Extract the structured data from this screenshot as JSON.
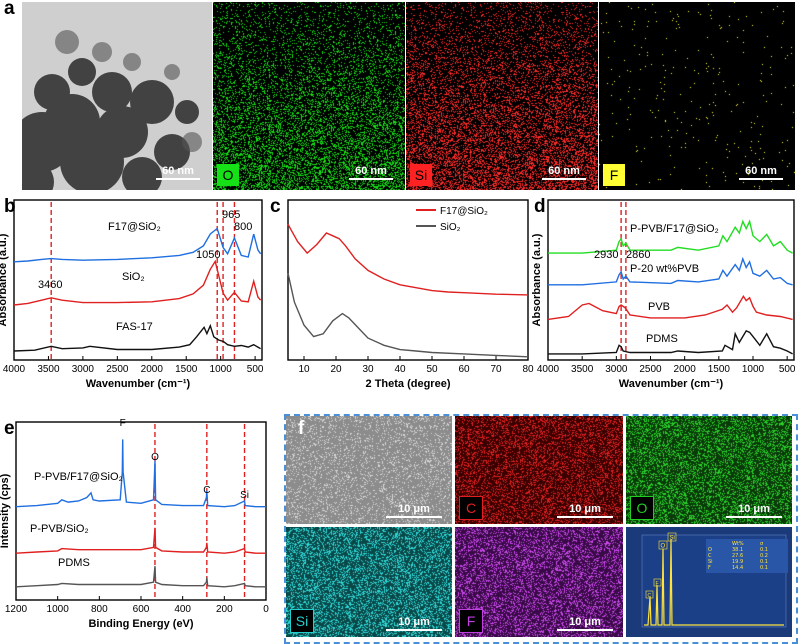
{
  "panel_a": {
    "label": "a",
    "tiles": [
      {
        "element": "",
        "scale": "60 nm"
      },
      {
        "element": "O",
        "scale": "60 nm",
        "color": "#16e016"
      },
      {
        "element": "Si",
        "scale": "60 nm",
        "color": "#ff2222"
      },
      {
        "element": "F",
        "scale": "60 nm",
        "color": "#ffff33"
      }
    ]
  },
  "panel_f": {
    "label": "f",
    "tiles": [
      {
        "element": "",
        "scale": "10 μm"
      },
      {
        "element": "C",
        "scale": "10 μm",
        "color": "#e02020"
      },
      {
        "element": "O",
        "scale": "10 μm",
        "color": "#22cc22"
      },
      {
        "element": "Si",
        "scale": "10 μm",
        "color": "#22d0d0"
      },
      {
        "element": "F",
        "scale": "10 μm",
        "color": "#c040e0"
      }
    ],
    "eds": {
      "header": [
        "",
        "Wt%",
        "σ"
      ],
      "rows": [
        [
          "O",
          "38.1",
          "0.1"
        ],
        [
          "C",
          "27.6",
          "0.2"
        ],
        [
          "Si",
          "19.9",
          "0.1"
        ],
        [
          "F",
          "14.4",
          "0.1"
        ]
      ],
      "peak_labels": [
        "O",
        "Si",
        "C",
        "F"
      ]
    }
  },
  "chart_data": [
    {
      "id": "b",
      "label": "b",
      "type": "line",
      "xlabel": "Wavenumber (cm⁻¹)",
      "ylabel": "Absorbance (a.u.)",
      "xlim": [
        4000,
        400
      ],
      "xticks": [
        "4000",
        "3500",
        "3000",
        "2500",
        "2000",
        "1500",
        "1000",
        "500"
      ],
      "series": [
        {
          "name": "F17@SiO₂",
          "color": "#1f6fe0",
          "offset": 0.66,
          "x": [
            4000,
            3800,
            3600,
            3460,
            3300,
            3000,
            2500,
            2000,
            1600,
            1400,
            1250,
            1150,
            1050,
            965,
            900,
            800,
            700,
            600,
            520,
            460,
            420
          ],
          "y": [
            0.0,
            0.01,
            0.03,
            0.04,
            0.03,
            0.02,
            0.03,
            0.05,
            0.08,
            0.12,
            0.2,
            0.35,
            0.42,
            0.18,
            0.1,
            0.3,
            0.08,
            0.06,
            0.35,
            0.15,
            0.1
          ]
        },
        {
          "name": "SiO₂",
          "color": "#e02020",
          "offset": 0.36,
          "x": [
            4000,
            3800,
            3600,
            3460,
            3300,
            3000,
            2500,
            2000,
            1600,
            1400,
            1250,
            1150,
            1080,
            965,
            900,
            800,
            700,
            600,
            520,
            460,
            420
          ],
          "y": [
            0.0,
            0.02,
            0.06,
            0.09,
            0.06,
            0.03,
            0.03,
            0.04,
            0.08,
            0.14,
            0.25,
            0.45,
            0.55,
            0.15,
            0.06,
            0.16,
            0.05,
            0.04,
            0.3,
            0.1,
            0.06
          ]
        },
        {
          "name": "FAS-17",
          "color": "#111111",
          "offset": 0.04,
          "x": [
            4000,
            3700,
            3460,
            3300,
            3000,
            2900,
            2500,
            2000,
            1600,
            1450,
            1350,
            1240,
            1200,
            1150,
            1100,
            1030,
            960,
            900,
            800,
            700,
            600,
            520,
            460,
            420
          ],
          "y": [
            0.0,
            0.01,
            0.06,
            0.03,
            0.04,
            0.06,
            0.02,
            0.02,
            0.05,
            0.08,
            0.18,
            0.3,
            0.22,
            0.32,
            0.18,
            0.14,
            0.12,
            0.08,
            0.06,
            0.07,
            0.05,
            0.08,
            0.05,
            0.03
          ]
        }
      ],
      "peak_lines": [
        3460,
        1050,
        965,
        800
      ],
      "peak_labels": [
        {
          "x": 3460,
          "text": "3460"
        },
        {
          "x": 1050,
          "text": "1050"
        },
        {
          "x": 965,
          "text": "965"
        },
        {
          "x": 800,
          "text": "800"
        }
      ],
      "series_labels": [
        "F17@SiO₂",
        "SiO₂",
        "FAS-17"
      ]
    },
    {
      "id": "c",
      "label": "c",
      "type": "line",
      "xlabel": "2 Theta (degree)",
      "ylabel": "",
      "xlim": [
        5,
        80
      ],
      "xticks": [
        "10",
        "20",
        "30",
        "40",
        "50",
        "60",
        "70",
        "80"
      ],
      "series": [
        {
          "name": "F17@SiO₂",
          "color": "#e02020",
          "offset": 0.42,
          "x": [
            5,
            8,
            11,
            14,
            17,
            19,
            21,
            23,
            26,
            30,
            35,
            40,
            45,
            50,
            55,
            60,
            70,
            80
          ],
          "y": [
            0.5,
            0.38,
            0.3,
            0.36,
            0.44,
            0.42,
            0.4,
            0.35,
            0.26,
            0.18,
            0.12,
            0.08,
            0.06,
            0.04,
            0.03,
            0.025,
            0.015,
            0.01
          ]
        },
        {
          "name": "SiO₂",
          "color": "#555555",
          "offset": 0.0,
          "x": [
            5,
            7,
            10,
            13,
            16,
            19,
            22,
            24,
            27,
            30,
            35,
            40,
            45,
            50,
            60,
            70,
            80
          ],
          "y": [
            0.58,
            0.38,
            0.22,
            0.14,
            0.16,
            0.25,
            0.3,
            0.27,
            0.2,
            0.13,
            0.08,
            0.05,
            0.04,
            0.03,
            0.02,
            0.01,
            0.0
          ]
        }
      ]
    },
    {
      "id": "d",
      "label": "d",
      "type": "line",
      "xlabel": "Wavenumber (cm⁻¹)",
      "ylabel": "Absorbance (a.u.)",
      "xlim": [
        4000,
        400
      ],
      "xticks": [
        "4000",
        "3500",
        "3000",
        "2500",
        "2000",
        "1500",
        "1000",
        "500"
      ],
      "series": [
        {
          "name": "P-PVB/F17@SiO₂",
          "color": "#22dd22",
          "offset": 0.72,
          "x": [
            4000,
            3500,
            3000,
            2960,
            2930,
            2900,
            2860,
            2800,
            2200,
            2100,
            1800,
            1500,
            1440,
            1380,
            1260,
            1200,
            1150,
            1100,
            1050,
            1000,
            900,
            800,
            700,
            600,
            500,
            420
          ],
          "y": [
            0.0,
            0.0,
            0.02,
            0.08,
            0.1,
            0.05,
            0.07,
            0.02,
            0.02,
            0.04,
            0.02,
            0.05,
            0.12,
            0.08,
            0.18,
            0.14,
            0.22,
            0.17,
            0.22,
            0.12,
            0.08,
            0.13,
            0.05,
            0.08,
            0.02,
            0.0
          ]
        },
        {
          "name": "P-20 wt%PVB",
          "color": "#1f6fe0",
          "offset": 0.5,
          "x": [
            4000,
            3500,
            3000,
            2960,
            2930,
            2900,
            2860,
            2800,
            2200,
            2100,
            1800,
            1500,
            1440,
            1380,
            1260,
            1200,
            1150,
            1100,
            1050,
            1000,
            900,
            800,
            700,
            600,
            500,
            420
          ],
          "y": [
            0.0,
            0.0,
            0.02,
            0.07,
            0.09,
            0.04,
            0.06,
            0.02,
            0.01,
            0.03,
            0.02,
            0.04,
            0.1,
            0.06,
            0.14,
            0.1,
            0.18,
            0.12,
            0.16,
            0.08,
            0.06,
            0.1,
            0.04,
            0.05,
            0.01,
            0.0
          ]
        },
        {
          "name": "PVB",
          "color": "#e02020",
          "offset": 0.26,
          "x": [
            4000,
            3700,
            3500,
            3400,
            3200,
            3000,
            2960,
            2930,
            2870,
            2800,
            2500,
            2000,
            1700,
            1450,
            1380,
            1300,
            1240,
            1140,
            1100,
            1050,
            1000,
            950,
            800,
            600,
            420
          ],
          "y": [
            0.0,
            0.02,
            0.1,
            0.11,
            0.06,
            0.04,
            0.09,
            0.1,
            0.08,
            0.03,
            0.01,
            0.01,
            0.03,
            0.07,
            0.1,
            0.05,
            0.08,
            0.16,
            0.13,
            0.15,
            0.09,
            0.05,
            0.03,
            0.02,
            0.0
          ]
        },
        {
          "name": "PDMS",
          "color": "#111111",
          "offset": 0.02,
          "x": [
            4000,
            3500,
            3000,
            2960,
            2930,
            2900,
            2800,
            2200,
            2100,
            1800,
            1450,
            1410,
            1300,
            1260,
            1200,
            1100,
            1050,
            1000,
            900,
            800,
            700,
            600,
            500,
            420
          ],
          "y": [
            0.0,
            0.0,
            0.01,
            0.06,
            0.05,
            0.02,
            0.01,
            0.01,
            0.02,
            0.01,
            0.02,
            0.06,
            0.03,
            0.14,
            0.08,
            0.16,
            0.15,
            0.12,
            0.06,
            0.14,
            0.05,
            0.04,
            0.02,
            0.0
          ]
        }
      ],
      "peak_lines": [
        2930,
        2860
      ],
      "peak_labels": [
        {
          "x": 2930,
          "text": "2930"
        },
        {
          "x": 2860,
          "text": "2860"
        }
      ],
      "series_labels": [
        "P-PVB/F17@SiO₂",
        "P-20 wt%PVB",
        "PVB",
        "PDMS"
      ]
    },
    {
      "id": "e",
      "label": "e",
      "type": "line",
      "xlabel": "Binding Energy (eV)",
      "ylabel": "Intensity (cps)",
      "xlim": [
        1200,
        0
      ],
      "xticks": [
        "1200",
        "1000",
        "800",
        "600",
        "400",
        "200",
        "0"
      ],
      "series": [
        {
          "name": "P-PVB/F17@SiO₂",
          "color": "#1f6fe0",
          "offset": 0.56,
          "x": [
            1200,
            1100,
            1000,
            980,
            950,
            900,
            860,
            840,
            830,
            800,
            700,
            690,
            688,
            686,
            670,
            600,
            540,
            533,
            530,
            500,
            400,
            300,
            286,
            284,
            280,
            200,
            150,
            103,
            100,
            50,
            0
          ],
          "y": [
            0.0,
            0.01,
            0.03,
            0.06,
            0.04,
            0.05,
            0.08,
            0.12,
            0.06,
            0.05,
            0.06,
            0.3,
            0.62,
            0.3,
            0.04,
            0.03,
            0.06,
            0.4,
            0.06,
            0.02,
            0.01,
            0.01,
            0.08,
            0.14,
            0.01,
            0.0,
            0.01,
            0.05,
            0.01,
            0.0,
            0.0
          ]
        },
        {
          "name": "P-PVB/SiO₂",
          "color": "#e02020",
          "offset": 0.27,
          "x": [
            1200,
            1100,
            1000,
            980,
            900,
            800,
            700,
            600,
            540,
            533,
            530,
            500,
            400,
            300,
            286,
            284,
            280,
            200,
            150,
            103,
            100,
            50,
            0
          ],
          "y": [
            0.0,
            0.01,
            0.02,
            0.04,
            0.03,
            0.03,
            0.03,
            0.03,
            0.05,
            0.22,
            0.05,
            0.02,
            0.01,
            0.01,
            0.05,
            0.09,
            0.01,
            0.0,
            0.01,
            0.04,
            0.01,
            0.0,
            0.0
          ]
        },
        {
          "name": "PDMS",
          "color": "#555555",
          "offset": 0.06,
          "x": [
            1200,
            1100,
            1000,
            980,
            900,
            800,
            700,
            600,
            540,
            533,
            530,
            500,
            400,
            300,
            286,
            284,
            280,
            200,
            150,
            103,
            100,
            50,
            0
          ],
          "y": [
            0.0,
            0.01,
            0.02,
            0.03,
            0.02,
            0.02,
            0.02,
            0.02,
            0.04,
            0.18,
            0.04,
            0.02,
            0.01,
            0.01,
            0.04,
            0.08,
            0.01,
            0.0,
            0.01,
            0.03,
            0.01,
            0.0,
            0.0
          ]
        }
      ],
      "peak_lines": [
        533,
        284,
        103
      ],
      "peak_labels": [
        {
          "x": 688,
          "text": "F"
        },
        {
          "x": 533,
          "text": "O"
        },
        {
          "x": 284,
          "text": "C"
        },
        {
          "x": 103,
          "text": "Si"
        }
      ],
      "series_labels": [
        "P-PVB/F17@SiO₂",
        "P-PVB/SiO₂",
        "PDMS"
      ]
    }
  ]
}
